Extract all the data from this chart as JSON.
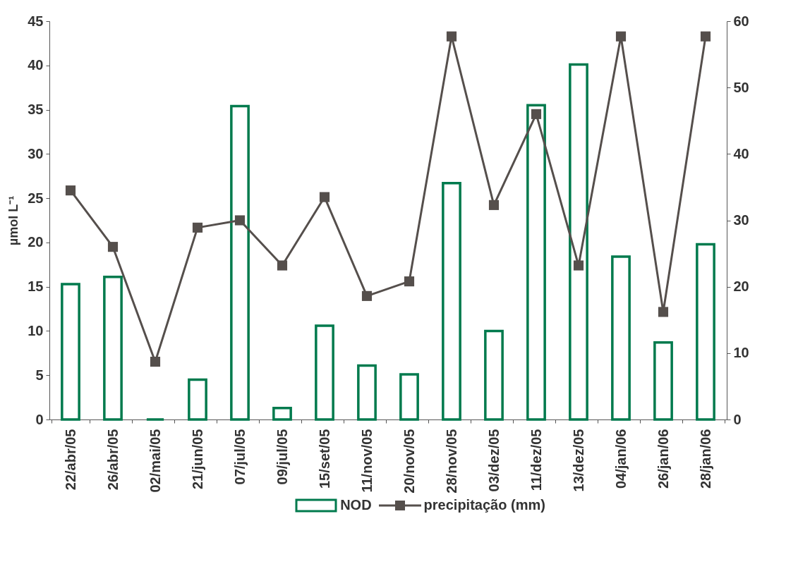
{
  "chart_data": {
    "type": "bar",
    "ylabel": "µmol L⁻¹",
    "categories": [
      "22/abr/05",
      "26/abr/05",
      "02/mai/05",
      "21/jun/05",
      "07/jul/05",
      "09/jul/05",
      "15/set/05",
      "11/nov/05",
      "20/nov/05",
      "28/nov/05",
      "03/dez/05",
      "11/dez/05",
      "13/dez/05",
      "04/jan/06",
      "26/jan/06",
      "28/jan/06"
    ],
    "series": [
      {
        "name": "NOD",
        "color": "#007a4d",
        "values": [
          15.3,
          16.1,
          0,
          4.5,
          35.4,
          1.3,
          10.6,
          6.1,
          5.1,
          26.7,
          10.0,
          35.5,
          40.1,
          18.4,
          8.7,
          19.8
        ]
      },
      {
        "name": "precipitação (mm)",
        "type": "line",
        "axis": "y2",
        "color": "#554f4c",
        "marker": "square",
        "values": [
          34.5,
          26.0,
          8.7,
          28.9,
          30.0,
          23.2,
          33.5,
          18.6,
          20.8,
          57.7,
          32.3,
          46.0,
          23.2,
          57.7,
          16.2,
          57.7
        ]
      }
    ],
    "ylim": [
      0,
      45
    ],
    "yticks": [
      0,
      5,
      10,
      15,
      20,
      25,
      30,
      35,
      40,
      45
    ],
    "y2lim": [
      0,
      60
    ],
    "y2ticks": [
      0,
      10,
      20,
      30,
      40,
      50,
      60
    ],
    "grid": false,
    "legend": "bottom"
  }
}
